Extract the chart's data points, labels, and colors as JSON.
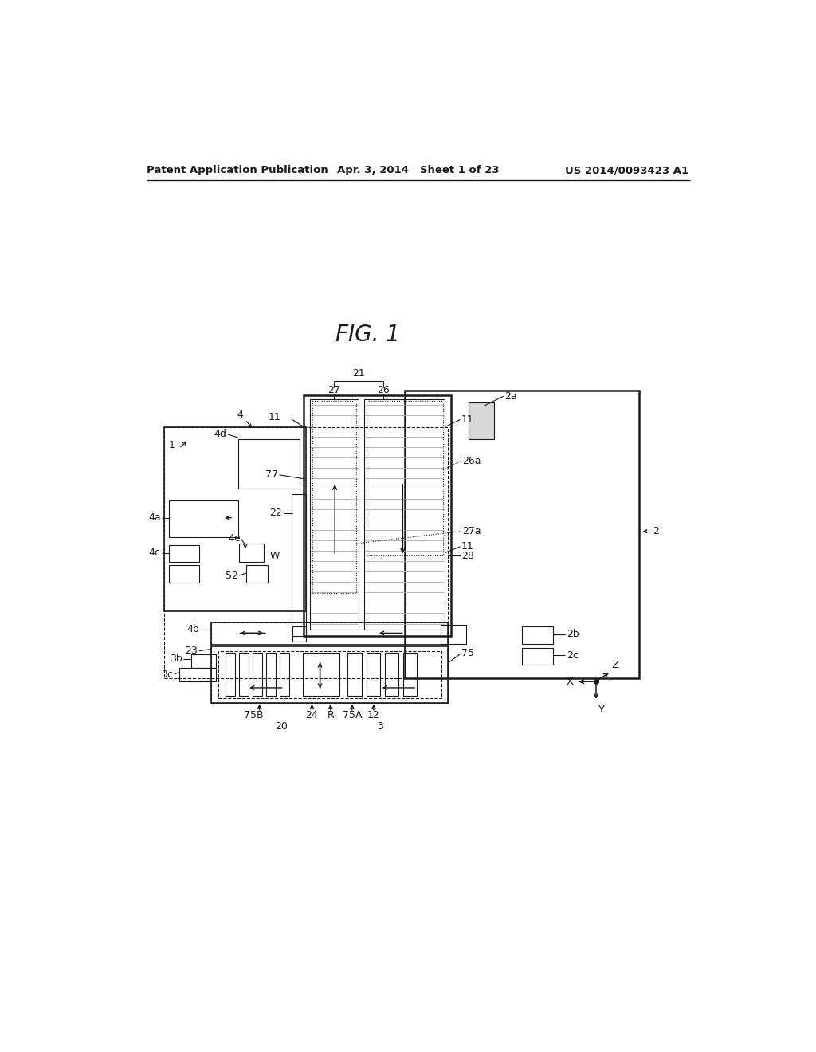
{
  "bg_color": "#ffffff",
  "header_left": "Patent Application Publication",
  "header_mid": "Apr. 3, 2014   Sheet 1 of 23",
  "header_right": "US 2014/0093423 A1",
  "fig_title": "FIG. 1",
  "line_color": "#1a1a1a",
  "gray_fill": "#d8d8d8",
  "hatch_color": "#888888"
}
